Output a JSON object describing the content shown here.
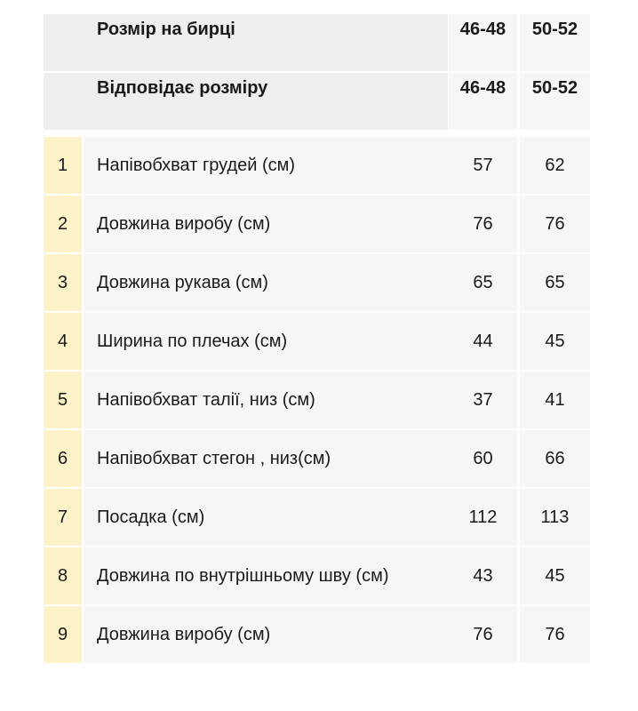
{
  "header": {
    "label_size_tag": "Розмір на бирці",
    "label_corresponds": "Відповідає розміру",
    "sizes_tag": [
      "46-48",
      "50-52"
    ],
    "sizes_corresponds": [
      "46-48",
      "50-52"
    ]
  },
  "rows": [
    {
      "num": "1",
      "name": "Напівобхват грудей (см)",
      "v1": "57",
      "v2": "62"
    },
    {
      "num": "2",
      "name": "Довжина виробу (см)",
      "v1": "76",
      "v2": "76"
    },
    {
      "num": "3",
      "name": "Довжина рукава (см)",
      "v1": "65",
      "v2": "65"
    },
    {
      "num": "4",
      "name": "Ширина по плечах (см)",
      "v1": "44",
      "v2": "45"
    },
    {
      "num": "5",
      "name": "Напівобхват талії, низ (см)",
      "v1": "37",
      "v2": "41"
    },
    {
      "num": "6",
      "name": "Напівобхват стегон , низ(см)",
      "v1": "60",
      "v2": "66"
    },
    {
      "num": "7",
      "name": "Посадка (см)",
      "v1": "112",
      "v2": "113"
    },
    {
      "num": "8",
      "name": "Довжина по внутрішньому шву (см)",
      "v1": "43",
      "v2": "45"
    },
    {
      "num": "9",
      "name": "Довжина виробу (см)",
      "v1": "76",
      "v2": "76"
    }
  ]
}
